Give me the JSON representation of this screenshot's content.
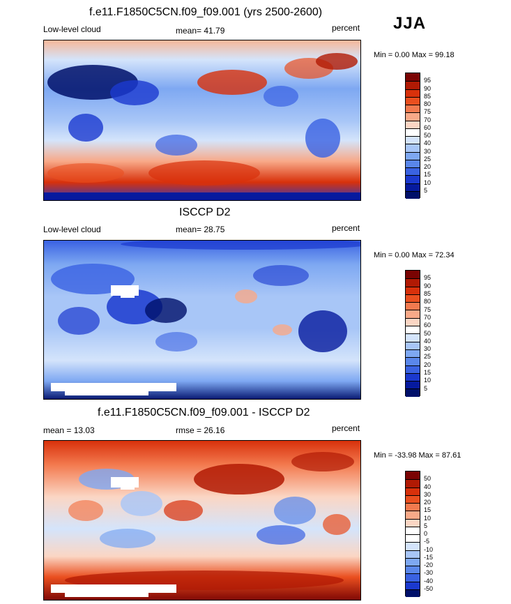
{
  "header": {
    "main_title": "f.e11.F1850C5CN.f09_f09.001 (yrs 2500-2600)",
    "season": "JJA"
  },
  "chart_data": [
    {
      "type": "heatmap",
      "title": "f.e11.F1850C5CN.f09_f09.001 (yrs 2500-2600)",
      "variable": "Low-level cloud",
      "stat_label": "mean=  41.79",
      "units": "percent",
      "range_label": "Min =   0.00 Max =  99.18",
      "colorbar": {
        "levels": [
          "95",
          "90",
          "85",
          "80",
          "75",
          "70",
          "60",
          "50",
          "40",
          "30",
          "25",
          "20",
          "15",
          "10",
          "5"
        ],
        "colors": [
          "#7a0403",
          "#b11a04",
          "#d8310b",
          "#ea4f1f",
          "#f37a4f",
          "#f8a988",
          "#fbd6c4",
          "#ffffff",
          "#d4e4fb",
          "#a8c6f7",
          "#7ea8f2",
          "#5a87eb",
          "#3a62e2",
          "#1b39cf",
          "#061a9e",
          "#00106a"
        ]
      }
    },
    {
      "type": "heatmap",
      "title": "ISCCP D2",
      "variable": "Low-level cloud",
      "stat_label": "mean=  28.75",
      "units": "percent",
      "range_label": "Min =   0.00 Max =  72.34",
      "colorbar": {
        "levels": [
          "95",
          "90",
          "85",
          "80",
          "75",
          "70",
          "60",
          "50",
          "40",
          "30",
          "25",
          "20",
          "15",
          "10",
          "5"
        ],
        "colors": [
          "#7a0403",
          "#b11a04",
          "#d8310b",
          "#ea4f1f",
          "#f37a4f",
          "#f8a988",
          "#fbd6c4",
          "#ffffff",
          "#d4e4fb",
          "#a8c6f7",
          "#7ea8f2",
          "#5a87eb",
          "#3a62e2",
          "#1b39cf",
          "#061a9e",
          "#00106a"
        ]
      }
    },
    {
      "type": "heatmap",
      "title": "f.e11.F1850C5CN.f09_f09.001 - ISCCP D2",
      "stat_label": "mean =  13.03",
      "stat2_label": "rmse =  26.16",
      "units": "percent",
      "range_label": "Min = -33.98 Max =  87.61",
      "colorbar": {
        "levels": [
          "50",
          "40",
          "30",
          "20",
          "15",
          "10",
          "5",
          "0",
          "-5",
          "-10",
          "-15",
          "-20",
          "-30",
          "-40",
          "-50"
        ],
        "colors": [
          "#7a0403",
          "#b11a04",
          "#d8310b",
          "#ea4f1f",
          "#f37a4f",
          "#f8a988",
          "#fbd6c4",
          "#ffffff",
          "#ffffff",
          "#d4e4fb",
          "#a8c6f7",
          "#7ea8f2",
          "#5a87eb",
          "#3a62e2",
          "#1b39cf",
          "#00106a"
        ]
      }
    }
  ]
}
